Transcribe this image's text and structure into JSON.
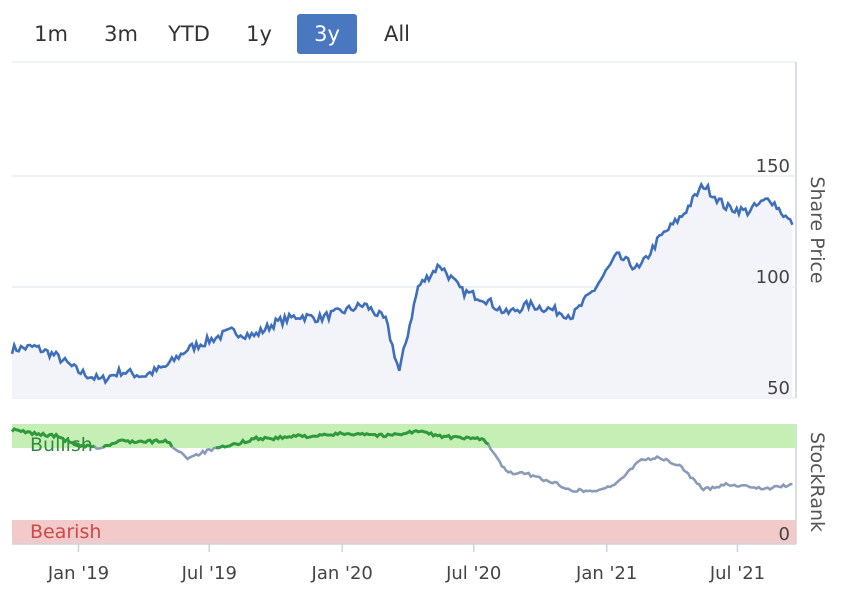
{
  "range_selector": {
    "buttons": [
      {
        "label": "1m",
        "active": false
      },
      {
        "label": "3m",
        "active": false
      },
      {
        "label": "YTD",
        "active": false
      },
      {
        "label": "1y",
        "active": false
      },
      {
        "label": "3y",
        "active": true
      },
      {
        "label": "All",
        "active": false
      }
    ]
  },
  "colors": {
    "price_line": "#3f6fba",
    "price_fill": "#f3f4fa",
    "rank_line": "#8a9ab8",
    "rank_line_bullish": "#2f9a3c",
    "bullish_band": "#c6efb6",
    "bearish_band": "#f2caca",
    "bullish_text": "#2e8b3a",
    "bearish_text": "#d04848",
    "active_button": "#4a78c0"
  },
  "chart_data": [
    {
      "type": "line",
      "ylabel": "Share Price",
      "ylim": [
        50,
        150
      ],
      "y_ticks": [
        "50",
        "100",
        "150"
      ],
      "x": [
        "2018-10-01",
        "2018-11-01",
        "2018-12-01",
        "2019-01-01",
        "2019-02-01",
        "2019-03-01",
        "2019-04-01",
        "2019-05-01",
        "2019-06-01",
        "2019-07-01",
        "2019-08-01",
        "2019-09-01",
        "2019-10-01",
        "2019-11-01",
        "2019-12-01",
        "2020-01-01",
        "2020-02-01",
        "2020-03-01",
        "2020-03-20",
        "2020-04-15",
        "2020-05-15",
        "2020-06-15",
        "2020-07-15",
        "2020-08-15",
        "2020-09-15",
        "2020-10-15",
        "2020-11-15",
        "2020-12-15",
        "2021-01-15",
        "2021-02-15",
        "2021-03-15",
        "2021-04-15",
        "2021-05-15",
        "2021-06-15",
        "2021-07-15",
        "2021-08-15",
        "2021-09-15"
      ],
      "series": [
        {
          "values": [
            72,
            73,
            69,
            62,
            58,
            62,
            60,
            64,
            72,
            76,
            80,
            78,
            84,
            87,
            86,
            89,
            92,
            85,
            62,
            100,
            110,
            98,
            95,
            88,
            92,
            90,
            87,
            99,
            114,
            108,
            122,
            132,
            146,
            136,
            134,
            140,
            128
          ]
        }
      ]
    },
    {
      "type": "line",
      "ylabel": "StockRank",
      "y_ticks": [
        "0"
      ],
      "bands": [
        {
          "label": "Bullish",
          "from": 80,
          "to": 100
        },
        {
          "label": "Bearish",
          "from": 0,
          "to": 20
        }
      ],
      "ylim": [
        0,
        100
      ],
      "x": [
        "2018-10-01",
        "2018-11-01",
        "2018-12-01",
        "2019-01-01",
        "2019-02-01",
        "2019-03-01",
        "2019-04-01",
        "2019-05-01",
        "2019-06-01",
        "2019-07-01",
        "2019-08-01",
        "2019-09-01",
        "2019-10-01",
        "2019-11-01",
        "2019-12-01",
        "2020-01-01",
        "2020-02-01",
        "2020-03-01",
        "2020-03-20",
        "2020-04-15",
        "2020-05-15",
        "2020-06-15",
        "2020-07-15",
        "2020-08-15",
        "2020-09-15",
        "2020-10-15",
        "2020-11-15",
        "2020-12-15",
        "2021-01-15",
        "2021-02-15",
        "2021-03-15",
        "2021-04-15",
        "2021-05-15",
        "2021-06-15",
        "2021-07-15",
        "2021-08-15",
        "2021-09-15"
      ],
      "series": [
        {
          "values": [
            95,
            92,
            90,
            82,
            80,
            86,
            85,
            86,
            72,
            78,
            82,
            88,
            88,
            90,
            90,
            92,
            92,
            90,
            92,
            94,
            90,
            88,
            88,
            60,
            58,
            52,
            45,
            44,
            50,
            70,
            72,
            64,
            45,
            50,
            48,
            46,
            50
          ]
        }
      ]
    }
  ],
  "x_axis": {
    "tick_labels": [
      {
        "label": "Jan '19",
        "date": "2019-01-01"
      },
      {
        "label": "Jul '19",
        "date": "2019-07-01"
      },
      {
        "label": "Jan '20",
        "date": "2020-01-01"
      },
      {
        "label": "Jul '20",
        "date": "2020-07-01"
      },
      {
        "label": "Jan '21",
        "date": "2021-01-01"
      },
      {
        "label": "Jul '21",
        "date": "2021-07-01"
      }
    ],
    "min_date": "2018-10-01",
    "max_date": "2021-09-20"
  },
  "band_labels": {
    "bullish": "Bullish",
    "bearish": "Bearish"
  }
}
